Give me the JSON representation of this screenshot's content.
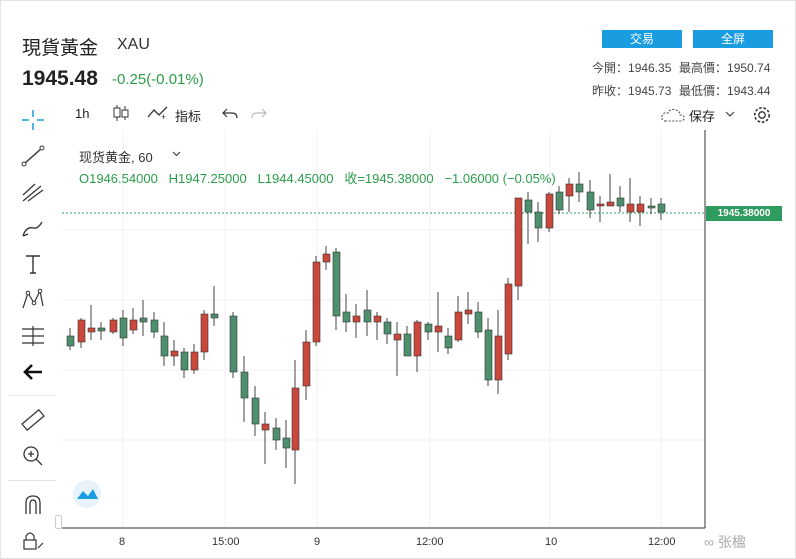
{
  "header": {
    "title": "現貨黃金",
    "symbol": "XAU",
    "price": "1945.48",
    "change": "-0.25(-0.01%)"
  },
  "buttons": {
    "trade": "交易",
    "fullscreen": "全屏"
  },
  "stats": {
    "open_label": "今開",
    "open": "1946.35",
    "high_label": "最高價",
    "high": "1950.74",
    "prevclose_label": "昨收",
    "prevclose": "1945.73",
    "low_label": "最低價",
    "low": "1943.44"
  },
  "toolbar": {
    "interval": "1h",
    "indicators": "指标",
    "save": "保存"
  },
  "legend": {
    "name": "现货黄金, 60",
    "open": "O1946.54000",
    "high": "H1947.25000",
    "low": "L1944.45000",
    "close": "收=1945.38000",
    "change": "−1.06000 (−0.05%)"
  },
  "price_tag": "1945.38000",
  "x_axis": [
    "8",
    "15:00",
    "9",
    "12:00",
    "10",
    "12:00"
  ],
  "watermark": "∞ 张楹"
}
